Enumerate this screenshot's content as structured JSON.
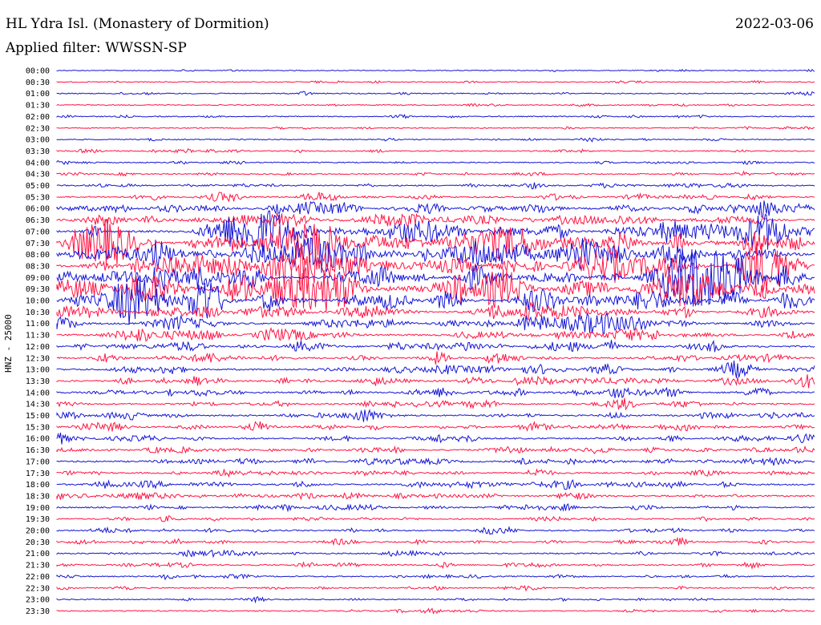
{
  "header": {
    "station": "HL Ydra Isl. (Monastery of Dormition)",
    "date": "2022-03-06",
    "filter": "Applied filter: WWSSN-SP"
  },
  "chart_data": {
    "type": "line",
    "title": "HL Ydra Isl. (Monastery of Dormition)",
    "ylabel": "HNZ - 25000",
    "trace_colors": [
      "#1515d6",
      "#ff1545"
    ],
    "row_labels": [
      "00:00",
      "00:30",
      "01:00",
      "01:30",
      "02:00",
      "02:30",
      "03:00",
      "03:30",
      "04:00",
      "04:30",
      "05:00",
      "05:30",
      "06:00",
      "06:30",
      "07:00",
      "07:30",
      "08:00",
      "08:30",
      "09:00",
      "09:30",
      "10:00",
      "10:30",
      "11:00",
      "11:30",
      "12:00",
      "12:30",
      "13:00",
      "13:30",
      "14:00",
      "14:30",
      "15:00",
      "15:30",
      "16:00",
      "16:30",
      "17:00",
      "17:30",
      "18:00",
      "18:30",
      "19:00",
      "19:30",
      "20:00",
      "20:30",
      "21:00",
      "21:30",
      "22:00",
      "22:30",
      "23:00",
      "23:30"
    ],
    "row_activity": [
      0.15,
      0.2,
      0.25,
      0.2,
      0.25,
      0.2,
      0.25,
      0.3,
      0.3,
      0.35,
      0.45,
      0.55,
      0.75,
      0.8,
      0.9,
      1.0,
      1.0,
      1.0,
      1.0,
      1.0,
      0.9,
      0.85,
      0.8,
      0.75,
      0.7,
      0.65,
      0.7,
      0.7,
      0.65,
      0.6,
      0.6,
      0.6,
      0.6,
      0.6,
      0.6,
      0.55,
      0.6,
      0.6,
      0.5,
      0.45,
      0.45,
      0.45,
      0.45,
      0.45,
      0.4,
      0.35,
      0.3,
      0.3
    ]
  }
}
